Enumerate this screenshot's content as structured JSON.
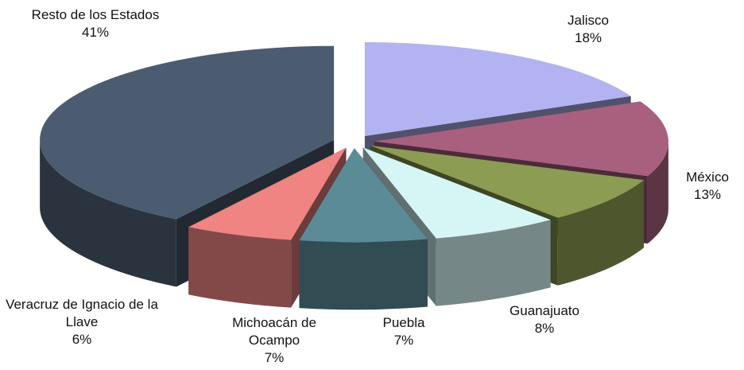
{
  "chart_data": {
    "type": "pie",
    "categories": [
      "Jalisco",
      "México",
      "Guanajuato",
      "Puebla",
      "Michoacán de Ocampo",
      "Veracruz de Ignacio de la Llave",
      "Resto de los Estados"
    ],
    "values": [
      18,
      13,
      8,
      7,
      7,
      6,
      41
    ],
    "value_labels": [
      "18%",
      "13%",
      "8%",
      "7%",
      "7%",
      "6%",
      "41%"
    ],
    "colors": [
      "#b3b3f2",
      "#a8607e",
      "#8c9c52",
      "#d6f6f6",
      "#5b8b97",
      "#ef8482",
      "#4c5c70"
    ]
  }
}
